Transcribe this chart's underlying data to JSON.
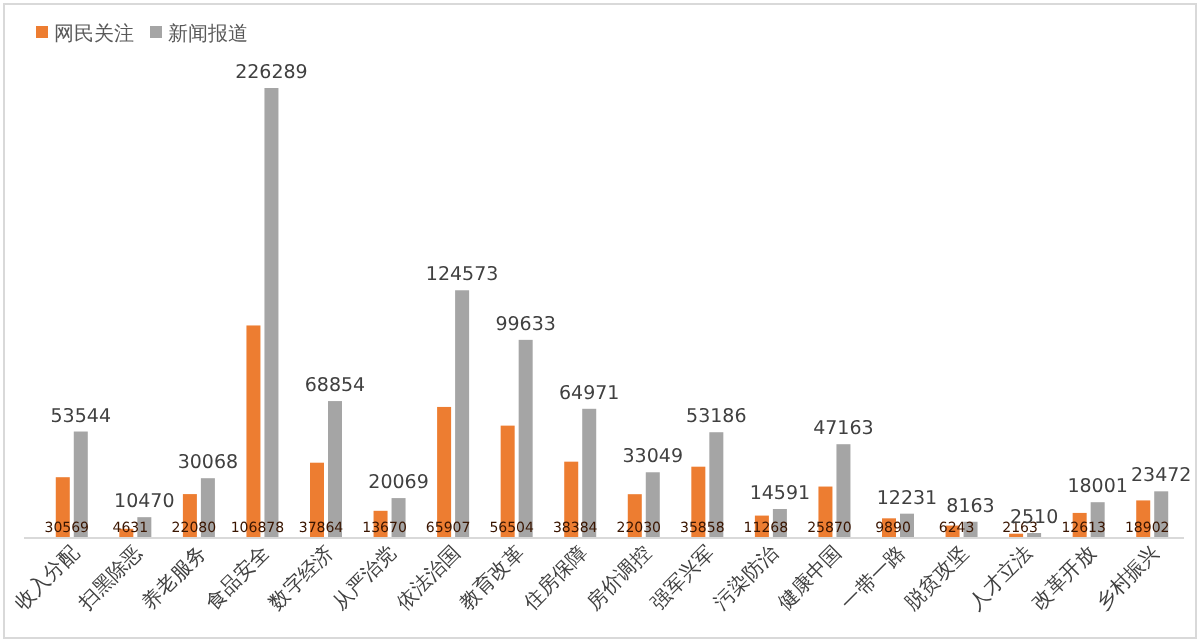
{
  "chart_data": {
    "type": "bar",
    "categories": [
      "收入分配",
      "扫黑除恶",
      "养老服务",
      "食品安全",
      "数字经济",
      "从严治党",
      "依法治国",
      "教育改革",
      "住房保障",
      "房价调控",
      "强军兴军",
      "污染防治",
      "健康中国",
      "一带一路",
      "脱贫攻坚",
      "人才立法",
      "改革开放",
      "乡村振兴"
    ],
    "series": [
      {
        "name": "网民关注",
        "color": "#ed7d31",
        "values": [
          30569,
          4631,
          22080,
          106878,
          37864,
          13670,
          65907,
          56504,
          38384,
          22030,
          35858,
          11268,
          25870,
          9890,
          6243,
          2163,
          12613,
          18902
        ]
      },
      {
        "name": "新闻报道",
        "color": "#a5a5a5",
        "values": [
          53544,
          10470,
          30068,
          226289,
          68854,
          20069,
          124573,
          99633,
          64971,
          33049,
          53186,
          14591,
          47163,
          12231,
          8163,
          2510,
          18001,
          23472
        ]
      }
    ],
    "data_labels": true,
    "legend": "top left"
  }
}
